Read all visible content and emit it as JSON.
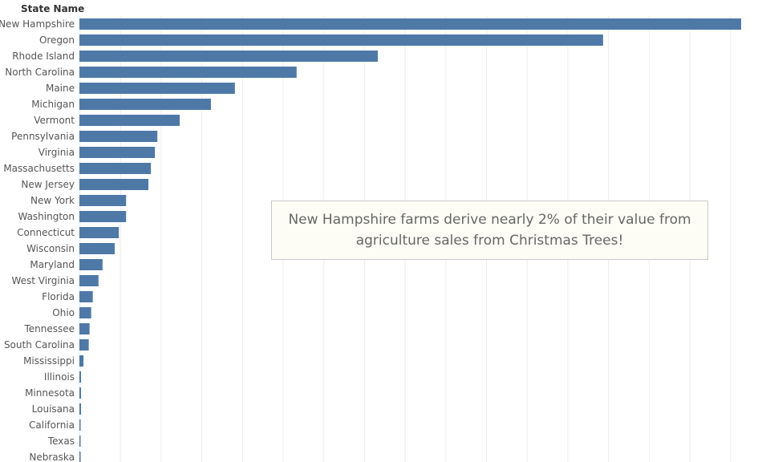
{
  "chart_data": {
    "type": "bar",
    "orientation": "horizontal",
    "title": "",
    "row_header": "State Name",
    "xlabel": "",
    "ylabel": "State Name",
    "grid": true,
    "bar_color": "#4e79a7",
    "xlim": [
      0,
      1.62
    ],
    "categories": [
      "New Hampshire",
      "Oregon",
      "Rhode Island",
      "North Carolina",
      "Maine",
      "Michigan",
      "Vermont",
      "Pennsylvania",
      "Virginia",
      "Massachusetts",
      "New Jersey",
      "New York",
      "Washington",
      "Connecticut",
      "Wisconsin",
      "Maryland",
      "West Virginia",
      "Florida",
      "Ohio",
      "Tennessee",
      "South Carolina",
      "Mississippi",
      "Illinois",
      "Minnesota",
      "Louisana",
      "California",
      "Texas",
      "Nebraska"
    ],
    "values": [
      1.63,
      1.29,
      0.735,
      0.535,
      0.383,
      0.324,
      0.247,
      0.192,
      0.186,
      0.176,
      0.17,
      0.115,
      0.115,
      0.097,
      0.087,
      0.057,
      0.047,
      0.033,
      0.029,
      0.025,
      0.023,
      0.01,
      0.004,
      0.004,
      0.004,
      0.002,
      0.002,
      0.002
    ],
    "annotation": "New Hampshire farms derive nearly 2% of their value from agriculture sales from Christmas Trees!"
  }
}
